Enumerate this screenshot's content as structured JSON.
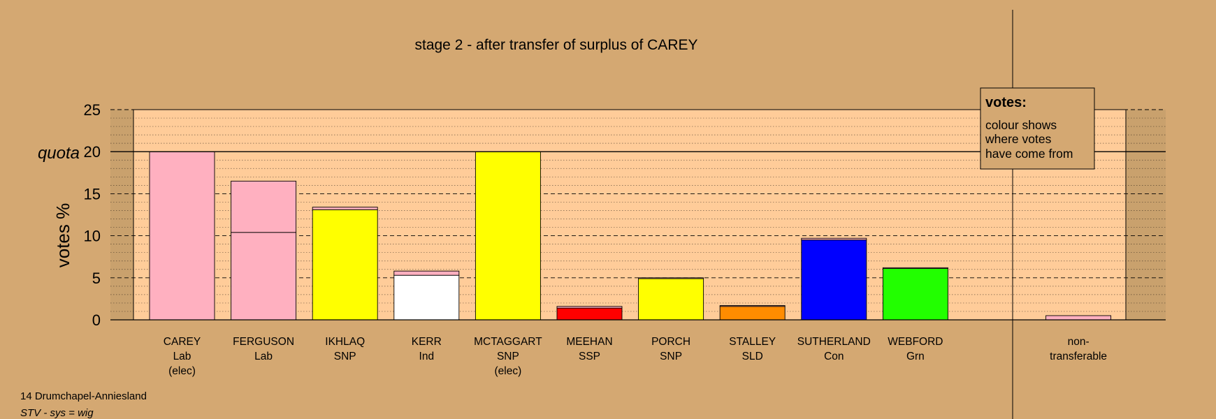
{
  "chart_data": {
    "type": "bar",
    "title": "stage 2 - after transfer of surplus of CAREY",
    "ylabel": "votes %",
    "ylim": [
      0,
      25
    ],
    "yticks": [
      "0",
      "5",
      "10",
      "15",
      "20",
      "25"
    ],
    "quota": {
      "label": "quota",
      "value": 20
    },
    "grid": true,
    "candidates": [
      {
        "name": "CAREY",
        "party": "Lab",
        "note": "(elec)",
        "color": "#ffb0c0",
        "segments": [
          {
            "value": 20.0,
            "color": "#ffb0c0"
          }
        ]
      },
      {
        "name": "FERGUSON",
        "party": "Lab",
        "note": "",
        "color": "#ffb0c0",
        "segments": [
          {
            "value": 10.4,
            "color": "#ffb0c0"
          },
          {
            "value": 6.1,
            "color": "#ffb0c0"
          }
        ]
      },
      {
        "name": "IKHLAQ",
        "party": "SNP",
        "note": "",
        "color": "#ffff00",
        "segments": [
          {
            "value": 13.1,
            "color": "#ffff00"
          },
          {
            "value": 0.3,
            "color": "#ffb0c0"
          }
        ]
      },
      {
        "name": "KERR",
        "party": "Ind",
        "note": "",
        "color": "#ffffff",
        "segments": [
          {
            "value": 5.3,
            "color": "#ffffff"
          },
          {
            "value": 0.5,
            "color": "#ffb0c0"
          }
        ]
      },
      {
        "name": "MCTAGGART",
        "party": "SNP",
        "note": "(elec)",
        "color": "#ffff00",
        "segments": [
          {
            "value": 20.0,
            "color": "#ffff00"
          }
        ]
      },
      {
        "name": "MEEHAN",
        "party": "SSP",
        "note": "",
        "color": "#ff0000",
        "segments": [
          {
            "value": 1.4,
            "color": "#ff0000"
          },
          {
            "value": 0.2,
            "color": "#ffb0c0"
          }
        ]
      },
      {
        "name": "PORCH",
        "party": "SNP",
        "note": "",
        "color": "#ffff00",
        "segments": [
          {
            "value": 4.9,
            "color": "#ffff00"
          },
          {
            "value": 0.1,
            "color": "#ffb0c0"
          }
        ]
      },
      {
        "name": "STALLEY",
        "party": "SLD",
        "note": "",
        "color": "#ff8c00",
        "segments": [
          {
            "value": 1.6,
            "color": "#ff8c00"
          },
          {
            "value": 0.1,
            "color": "#ffb0c0"
          }
        ]
      },
      {
        "name": "SUTHERLAND",
        "party": "Con",
        "note": "",
        "color": "#0000ff",
        "segments": [
          {
            "value": 9.5,
            "color": "#0000ff"
          },
          {
            "value": 0.2,
            "color": "#ffb0c0"
          }
        ]
      },
      {
        "name": "WEBFORD",
        "party": "Grn",
        "note": "",
        "color": "#22ff00",
        "segments": [
          {
            "value": 6.1,
            "color": "#22ff00"
          },
          {
            "value": 0.1,
            "color": "#ffb0c0"
          }
        ]
      },
      {
        "name": "",
        "party": "",
        "note": "",
        "color": "",
        "segments": []
      },
      {
        "name": "non-",
        "party": "transferable",
        "note": "",
        "color": "#ffb0c0",
        "segments": [
          {
            "value": 0.5,
            "color": "#ffb0c0"
          }
        ]
      }
    ]
  },
  "legend": {
    "title": "votes:",
    "lines": [
      "colour shows",
      "where votes",
      "have come from"
    ]
  },
  "footer": {
    "constituency": "14 Drumchapel-Anniesland",
    "system": "STV - sys = wig"
  },
  "colors": {
    "background": "#d4a872",
    "plot_area": "#ffcc99",
    "shade": "#c09a6a"
  }
}
